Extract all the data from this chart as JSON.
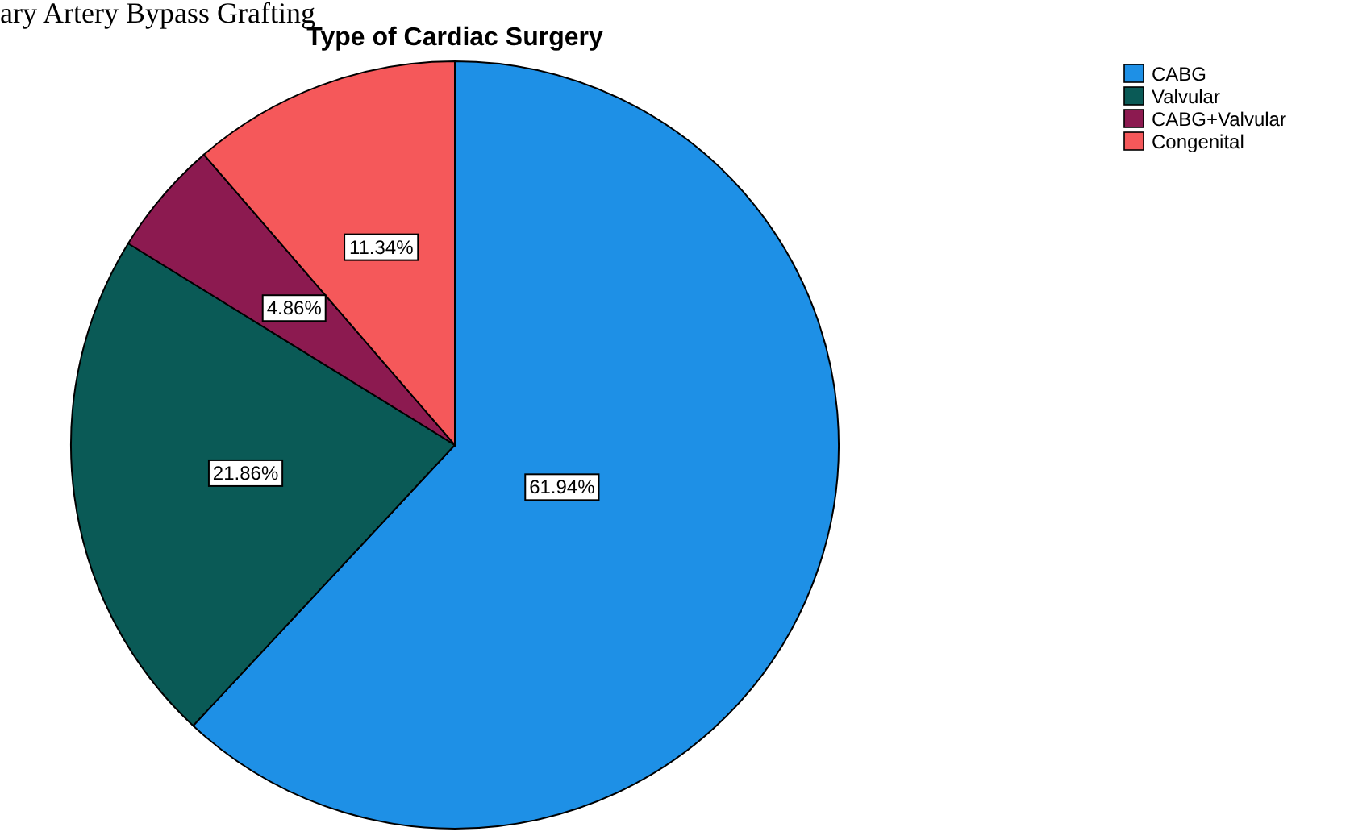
{
  "chart_data": {
    "type": "pie",
    "title": "Type of Cardiac Surgery",
    "annotations": [
      "ary Artery Bypass Grafting"
    ],
    "categories": [
      "CABG",
      "Valvular",
      "CABG+Valvular",
      "Congenital"
    ],
    "values": [
      61.94,
      21.86,
      4.86,
      11.34
    ],
    "colors": [
      "#1e90e6",
      "#0a5a56",
      "#8c1a50",
      "#f5585a"
    ],
    "value_labels": [
      "61.94%",
      "21.86%",
      "4.86%",
      "11.34%"
    ],
    "legend": "top right"
  }
}
